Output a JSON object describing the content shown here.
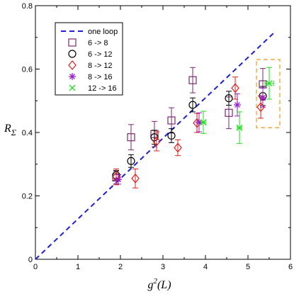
{
  "chart_data": {
    "type": "scatter",
    "xlabel_main": "g",
    "xlabel_sup": "2",
    "xlabel_arg": "(L)",
    "ylabel_main": "R",
    "ylabel_sub": "Σ",
    "xlim": [
      0,
      6
    ],
    "ylim": [
      0,
      0.8
    ],
    "xticks": [
      0,
      1,
      2,
      3,
      4,
      5,
      6
    ],
    "yticks": [
      0,
      0.2,
      0.4,
      0.6,
      0.8
    ],
    "xtick_labels": [
      "0",
      "1",
      "2",
      "3",
      "4",
      "5",
      "6"
    ],
    "ytick_labels": [
      "0",
      "0.2",
      "0.4",
      "0.6",
      "0.8"
    ],
    "grid": false,
    "legend_position": "top-left",
    "one_loop": {
      "name": "one loop",
      "color": "#1f1fd6",
      "x": [
        0,
        5.6
      ],
      "y": [
        0,
        0.713
      ]
    },
    "series": [
      {
        "name": "6 ->   8",
        "marker": "square",
        "color": "#7b2a6f",
        "points": [
          {
            "x": 1.9,
            "y": 0.258,
            "err": 0.02
          },
          {
            "x": 2.25,
            "y": 0.385,
            "err": 0.04
          },
          {
            "x": 2.8,
            "y": 0.395,
            "err": 0.04
          },
          {
            "x": 3.2,
            "y": 0.438,
            "err": 0.04
          },
          {
            "x": 3.7,
            "y": 0.565,
            "err": 0.04
          },
          {
            "x": 4.55,
            "y": 0.462,
            "err": 0.05
          },
          {
            "x": 5.35,
            "y": 0.552,
            "err": 0.05
          }
        ]
      },
      {
        "name": "6 -> 12",
        "marker": "circle",
        "color": "#000000",
        "points": [
          {
            "x": 1.9,
            "y": 0.265,
            "err": 0.015
          },
          {
            "x": 2.25,
            "y": 0.31,
            "err": 0.02
          },
          {
            "x": 2.8,
            "y": 0.385,
            "err": 0.022
          },
          {
            "x": 3.2,
            "y": 0.39,
            "err": 0.022
          },
          {
            "x": 3.7,
            "y": 0.487,
            "err": 0.022
          },
          {
            "x": 4.55,
            "y": 0.508,
            "err": 0.022
          },
          {
            "x": 5.35,
            "y": 0.515,
            "err": 0.03
          }
        ]
      },
      {
        "name": "8 -> 12",
        "marker": "diamond",
        "color": "#e02020",
        "points": [
          {
            "x": 1.9,
            "y": 0.26,
            "err": 0.025
          },
          {
            "x": 2.35,
            "y": 0.255,
            "err": 0.03
          },
          {
            "x": 2.85,
            "y": 0.372,
            "err": 0.03
          },
          {
            "x": 3.35,
            "y": 0.352,
            "err": 0.025
          },
          {
            "x": 3.8,
            "y": 0.43,
            "err": 0.03
          },
          {
            "x": 4.7,
            "y": 0.54,
            "err": 0.035
          },
          {
            "x": 5.3,
            "y": 0.48,
            "err": 0.035
          }
        ]
      },
      {
        "name": "8 -> 16",
        "marker": "asterisk",
        "color": "#9a22c8",
        "points": [
          {
            "x": 1.95,
            "y": 0.252,
            "err": 0.015
          },
          {
            "x": 3.85,
            "y": 0.432,
            "err": 0.03
          },
          {
            "x": 4.75,
            "y": 0.487,
            "err": 0.035
          },
          {
            "x": 5.35,
            "y": 0.51,
            "err": 0.03
          }
        ]
      },
      {
        "name": "12 -> 16",
        "marker": "cross",
        "color": "#22dd22",
        "points": [
          {
            "x": 3.95,
            "y": 0.432,
            "err": 0.035,
            "xerr": 0.05
          },
          {
            "x": 4.8,
            "y": 0.415,
            "err": 0.05,
            "xerr": 0.05
          },
          {
            "x": 5.5,
            "y": 0.555,
            "err": 0.05,
            "xerr": 0.1
          }
        ]
      }
    ],
    "highlight_box": {
      "color": "#f0a030",
      "x": [
        5.2,
        5.75
      ],
      "y": [
        0.415,
        0.63
      ]
    }
  }
}
